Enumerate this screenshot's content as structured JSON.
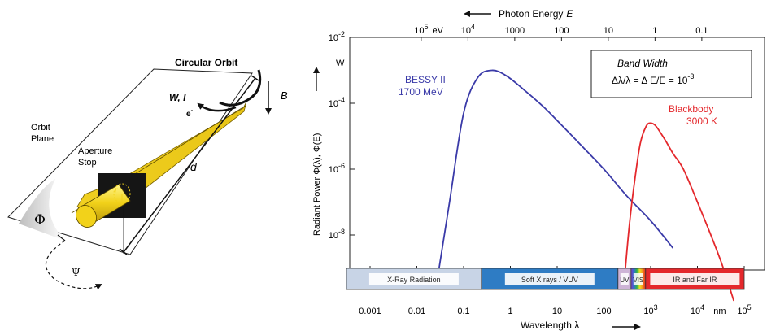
{
  "diagram": {
    "orbit_label": "Circular Orbit",
    "b_label": "B",
    "wi_label": "W, I",
    "electron_label": "e",
    "electron_sup": "-",
    "orbit_plane_line1": "Orbit",
    "orbit_plane_line2": "Plane",
    "aperture_line1": "Aperture",
    "aperture_line2": "Stop",
    "d_label": "d",
    "r_label": "r",
    "phi_label": "Φ",
    "psi_label": "Ψ"
  },
  "chart": {
    "top_axis_title": "Photon Energy",
    "top_axis_var": "E",
    "top_ticks": [
      {
        "label": "10",
        "sup": "5",
        "wl_nm": 0.0124
      },
      {
        "label": "eV",
        "sup": "",
        "wl_nm": 0.028
      },
      {
        "label": "10",
        "sup": "4",
        "wl_nm": 0.124
      },
      {
        "label": "1000",
        "sup": "",
        "wl_nm": 1.24
      },
      {
        "label": "100",
        "sup": "",
        "wl_nm": 12.4
      },
      {
        "label": "10",
        "sup": "",
        "wl_nm": 124
      },
      {
        "label": "1",
        "sup": "",
        "wl_nm": 1240
      },
      {
        "label": "0.1",
        "sup": "",
        "wl_nm": 12400
      }
    ],
    "y_ticks": [
      {
        "label": "10",
        "sup": "-2",
        "value": -2
      },
      {
        "label": "10",
        "sup": "-4",
        "value": -4
      },
      {
        "label": "10",
        "sup": "-6",
        "value": -6
      },
      {
        "label": "10",
        "sup": "-8",
        "value": -8
      }
    ],
    "y_unit": "W",
    "y_label": "Radiant Power Φ(λ), Φ(E)",
    "x_ticks": [
      {
        "label": "0.001",
        "sup": "",
        "value": 0.001
      },
      {
        "label": "0.01",
        "sup": "",
        "value": 0.01
      },
      {
        "label": "0.1",
        "sup": "",
        "value": 0.1
      },
      {
        "label": "1",
        "sup": "",
        "value": 1
      },
      {
        "label": "10",
        "sup": "",
        "value": 10
      },
      {
        "label": "100",
        "sup": "",
        "value": 100
      },
      {
        "label": "10",
        "sup": "3",
        "value": 1000
      },
      {
        "label": "10",
        "sup": "4",
        "value": 10000
      },
      {
        "label": "nm",
        "sup": "",
        "value": 30000
      },
      {
        "label": "10",
        "sup": "5",
        "value": 100000
      }
    ],
    "x_label": "Wavelength λ",
    "box_title": "Band Width",
    "box_formula": "Δλ/λ = Δ E/E = 10",
    "box_formula_sup": "-3",
    "bessy_name": "BESSY II",
    "bessy_energy": "1700 MeV",
    "bb_name": "Blackbody",
    "bb_temp": "3000 K",
    "regions": [
      {
        "label": "X-Ray Radiation",
        "from": 0.0003,
        "to": 0.24,
        "color": "#c8d4e6"
      },
      {
        "label": "Soft X rays / VUV",
        "from": 0.24,
        "to": 200,
        "color": "#2e7cc4"
      },
      {
        "label": "UV",
        "from": 200,
        "to": 380,
        "color": "#cdb3d6"
      },
      {
        "label": "VIS",
        "from": 380,
        "to": 780,
        "color": "rainbow"
      },
      {
        "label": "IR and Far IR",
        "from": 780,
        "to": 100000,
        "color": "#e4282c"
      }
    ]
  },
  "chart_data": {
    "type": "line",
    "xscale": "log",
    "yscale": "log",
    "xlabel": "Wavelength λ",
    "ylabel": "Radiant Power Φ(λ), Φ(E)",
    "xlim": [
      0.0003,
      100000
    ],
    "ylim": [
      1e-10,
      0.01
    ],
    "series": [
      {
        "name": "BESSY II 1700 MeV",
        "color": "#3a3aa8",
        "x": [
          0.03,
          0.05,
          0.1,
          0.2,
          0.4,
          0.8,
          2,
          5,
          10,
          30,
          100,
          300,
          1000,
          3000
        ],
        "y": [
          1e-09,
          1e-07,
          5e-05,
          0.0006,
          0.001,
          0.0007,
          0.00025,
          8e-05,
          3e-05,
          6e-06,
          1e-06,
          1.6e-07,
          2.7e-08,
          4e-09
        ]
      },
      {
        "name": "Blackbody 3000 K",
        "color": "#e4282c",
        "x": [
          280,
          350,
          450,
          600,
          800,
          1000,
          1300,
          2000,
          3000,
          5000,
          10000,
          30000,
          60000
        ],
        "y": [
          6e-10,
          2e-08,
          4e-07,
          6e-06,
          2e-05,
          2.5e-05,
          2e-05,
          8e-06,
          3e-06,
          1e-06,
          1e-07,
          2e-09,
          1e-10
        ]
      }
    ]
  }
}
